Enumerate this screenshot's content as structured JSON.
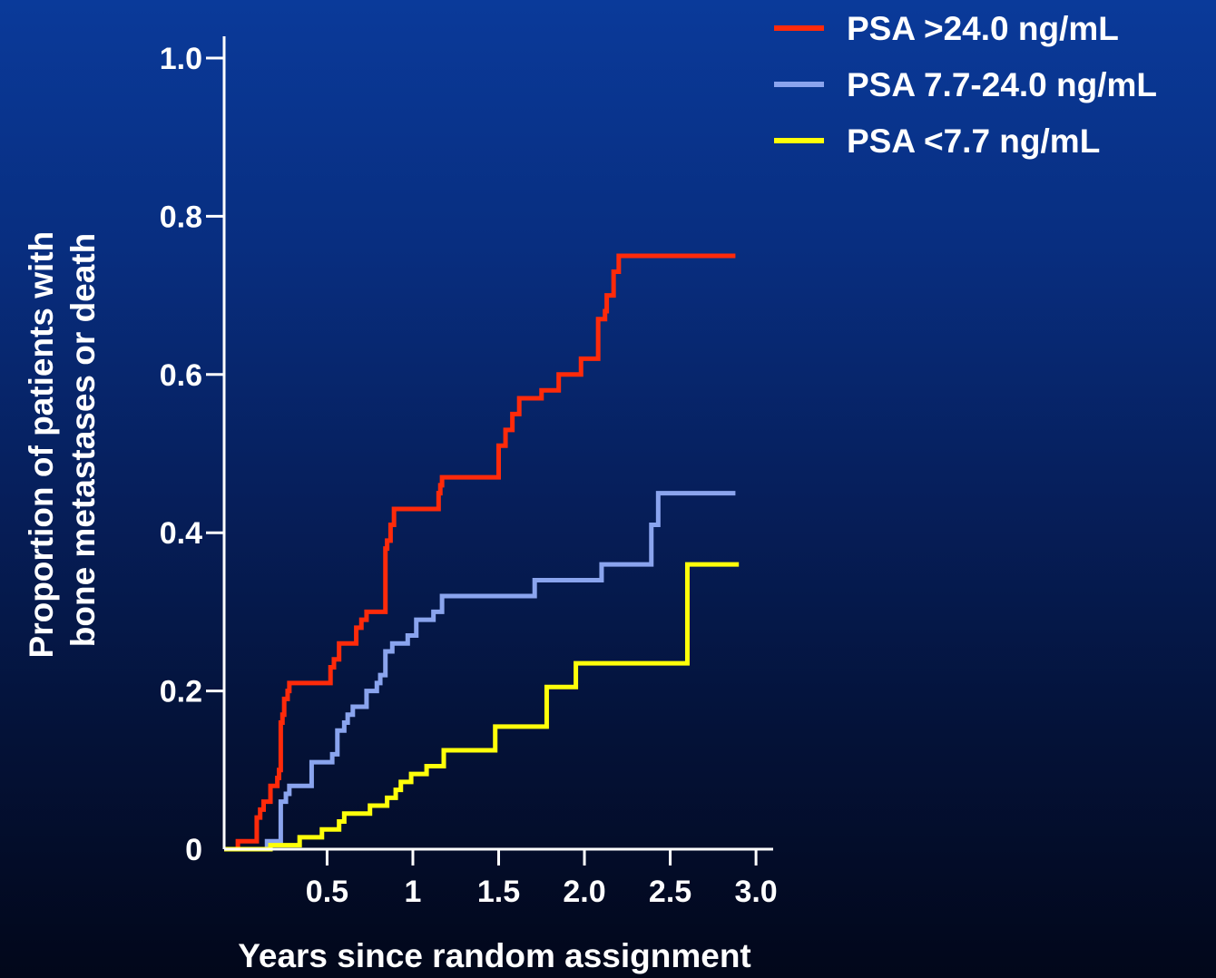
{
  "chart_data": {
    "type": "line",
    "step": true,
    "xlabel": "Years since random assignment",
    "ylabel_lines": [
      "Proportion of patients with",
      "bone metastases or death"
    ],
    "xlim": [
      0,
      3.2
    ],
    "ylim": [
      0,
      1.0
    ],
    "x_ticks": [
      {
        "value": 0.6,
        "label": "0.5"
      },
      {
        "value": 1.1,
        "label": "1"
      },
      {
        "value": 1.6,
        "label": "1.5"
      },
      {
        "value": 2.1,
        "label": "2.0"
      },
      {
        "value": 2.6,
        "label": "2.5"
      },
      {
        "value": 3.1,
        "label": "3.0"
      }
    ],
    "y_ticks": [
      {
        "value": 0,
        "label": "0"
      },
      {
        "value": 0.2,
        "label": "0.2"
      },
      {
        "value": 0.4,
        "label": "0.4"
      },
      {
        "value": 0.6,
        "label": "0.6"
      },
      {
        "value": 0.8,
        "label": "0.8"
      },
      {
        "value": 1.0,
        "label": "1.0"
      }
    ],
    "legend_position": "top-right",
    "series": [
      {
        "name": "PSA >24.0 ng/mL",
        "color": "#ff2a0a",
        "points": [
          [
            0.03,
            0
          ],
          [
            0.08,
            0.01
          ],
          [
            0.19,
            0.04
          ],
          [
            0.21,
            0.05
          ],
          [
            0.23,
            0.06
          ],
          [
            0.27,
            0.08
          ],
          [
            0.31,
            0.09
          ],
          [
            0.32,
            0.1
          ],
          [
            0.33,
            0.16
          ],
          [
            0.34,
            0.17
          ],
          [
            0.35,
            0.19
          ],
          [
            0.37,
            0.2
          ],
          [
            0.38,
            0.21
          ],
          [
            0.62,
            0.23
          ],
          [
            0.64,
            0.24
          ],
          [
            0.67,
            0.26
          ],
          [
            0.77,
            0.28
          ],
          [
            0.8,
            0.29
          ],
          [
            0.83,
            0.3
          ],
          [
            0.94,
            0.38
          ],
          [
            0.95,
            0.39
          ],
          [
            0.97,
            0.41
          ],
          [
            0.99,
            0.43
          ],
          [
            1.25,
            0.45
          ],
          [
            1.26,
            0.46
          ],
          [
            1.27,
            0.47
          ],
          [
            1.6,
            0.51
          ],
          [
            1.64,
            0.53
          ],
          [
            1.68,
            0.55
          ],
          [
            1.72,
            0.57
          ],
          [
            1.85,
            0.58
          ],
          [
            1.95,
            0.6
          ],
          [
            2.08,
            0.62
          ],
          [
            2.18,
            0.67
          ],
          [
            2.22,
            0.68
          ],
          [
            2.23,
            0.7
          ],
          [
            2.27,
            0.73
          ],
          [
            2.3,
            0.75
          ],
          [
            2.98,
            0.75
          ]
        ]
      },
      {
        "name": "PSA 7.7-24.0 ng/mL",
        "color": "#8aa4ee",
        "points": [
          [
            0.23,
            0
          ],
          [
            0.25,
            0.01
          ],
          [
            0.33,
            0.06
          ],
          [
            0.36,
            0.07
          ],
          [
            0.38,
            0.08
          ],
          [
            0.51,
            0.11
          ],
          [
            0.63,
            0.12
          ],
          [
            0.66,
            0.15
          ],
          [
            0.7,
            0.16
          ],
          [
            0.72,
            0.17
          ],
          [
            0.75,
            0.18
          ],
          [
            0.83,
            0.2
          ],
          [
            0.89,
            0.21
          ],
          [
            0.91,
            0.22
          ],
          [
            0.94,
            0.25
          ],
          [
            0.98,
            0.26
          ],
          [
            1.07,
            0.27
          ],
          [
            1.12,
            0.29
          ],
          [
            1.22,
            0.3
          ],
          [
            1.27,
            0.32
          ],
          [
            1.81,
            0.34
          ],
          [
            2.2,
            0.36
          ],
          [
            2.49,
            0.41
          ],
          [
            2.53,
            0.45
          ],
          [
            2.98,
            0.45
          ]
        ]
      },
      {
        "name": "PSA <7.7 ng/mL",
        "color": "#ffff0a",
        "points": [
          [
            0.03,
            0
          ],
          [
            0.27,
            0.005
          ],
          [
            0.44,
            0.015
          ],
          [
            0.57,
            0.025
          ],
          [
            0.67,
            0.035
          ],
          [
            0.7,
            0.045
          ],
          [
            0.85,
            0.055
          ],
          [
            0.95,
            0.065
          ],
          [
            1.0,
            0.075
          ],
          [
            1.03,
            0.085
          ],
          [
            1.09,
            0.095
          ],
          [
            1.18,
            0.105
          ],
          [
            1.28,
            0.125
          ],
          [
            1.58,
            0.155
          ],
          [
            1.88,
            0.205
          ],
          [
            2.05,
            0.235
          ],
          [
            2.7,
            0.36
          ],
          [
            3.0,
            0.36
          ]
        ]
      }
    ]
  }
}
